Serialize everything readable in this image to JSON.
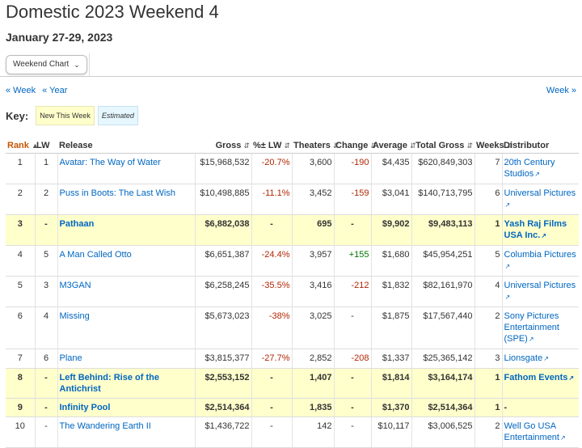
{
  "header": {
    "title": "Domestic 2023 Weekend 4",
    "dates": "January 27-29, 2023"
  },
  "toolbar": {
    "dropdown_label": "Weekend Chart"
  },
  "nav": {
    "prev_week": "« Week",
    "prev_year": "« Year",
    "next_week": "Week »"
  },
  "key": {
    "label": "Key:",
    "new": "New This Week",
    "estimated": "Estimated"
  },
  "columns": {
    "rank": "Rank",
    "lw": "LW",
    "release": "Release",
    "gross": "Gross",
    "pct_lw": "%± LW",
    "theaters": "Theaters",
    "change": "Change",
    "average": "Average",
    "total_gross": "Total Gross",
    "weeks": "Weeks",
    "distributor": "Distributor"
  },
  "colors": {
    "accent": "#c45500",
    "link": "#0066c0",
    "negative": "#b12704",
    "positive": "#007600",
    "new_row": "#ffffcc",
    "estimated": "#e6f7ff"
  },
  "rows": [
    {
      "rank": "1",
      "lw": "1",
      "release": "Avatar: The Way of Water",
      "gross": "$15,968,532",
      "pct_lw": "-20.7%",
      "theaters": "3,600",
      "change": "-190",
      "average": "$4,435",
      "total_gross": "$620,849,303",
      "weeks": "7",
      "distributor": "20th Century Studios",
      "new": false
    },
    {
      "rank": "2",
      "lw": "2",
      "release": "Puss in Boots: The Last Wish",
      "gross": "$10,498,885",
      "pct_lw": "-11.1%",
      "theaters": "3,452",
      "change": "-159",
      "average": "$3,041",
      "total_gross": "$140,713,795",
      "weeks": "6",
      "distributor": "Universal Pictures",
      "new": false
    },
    {
      "rank": "3",
      "lw": "-",
      "release": "Pathaan",
      "gross": "$6,882,038",
      "pct_lw": "-",
      "theaters": "695",
      "change": "-",
      "average": "$9,902",
      "total_gross": "$9,483,113",
      "weeks": "1",
      "distributor": "Yash Raj Films USA Inc.",
      "new": true
    },
    {
      "rank": "4",
      "lw": "5",
      "release": "A Man Called Otto",
      "gross": "$6,651,387",
      "pct_lw": "-24.4%",
      "theaters": "3,957",
      "change": "+155",
      "average": "$1,680",
      "total_gross": "$45,954,251",
      "weeks": "5",
      "distributor": "Columbia Pictures",
      "new": false
    },
    {
      "rank": "5",
      "lw": "3",
      "release": "M3GAN",
      "gross": "$6,258,245",
      "pct_lw": "-35.5%",
      "theaters": "3,416",
      "change": "-212",
      "average": "$1,832",
      "total_gross": "$82,161,970",
      "weeks": "4",
      "distributor": "Universal Pictures",
      "new": false
    },
    {
      "rank": "6",
      "lw": "4",
      "release": "Missing",
      "gross": "$5,673,023",
      "pct_lw": "-38%",
      "theaters": "3,025",
      "change": "-",
      "average": "$1,875",
      "total_gross": "$17,567,440",
      "weeks": "2",
      "distributor": "Sony Pictures Entertainment (SPE)",
      "new": false
    },
    {
      "rank": "7",
      "lw": "6",
      "release": "Plane",
      "gross": "$3,815,377",
      "pct_lw": "-27.7%",
      "theaters": "2,852",
      "change": "-208",
      "average": "$1,337",
      "total_gross": "$25,365,142",
      "weeks": "3",
      "distributor": "Lionsgate",
      "new": false
    },
    {
      "rank": "8",
      "lw": "-",
      "release": "Left Behind: Rise of the Antichrist",
      "gross": "$2,553,152",
      "pct_lw": "-",
      "theaters": "1,407",
      "change": "-",
      "average": "$1,814",
      "total_gross": "$3,164,174",
      "weeks": "1",
      "distributor": "Fathom Events",
      "new": true
    },
    {
      "rank": "9",
      "lw": "-",
      "release": "Infinity Pool",
      "gross": "$2,514,364",
      "pct_lw": "-",
      "theaters": "1,835",
      "change": "-",
      "average": "$1,370",
      "total_gross": "$2,514,364",
      "weeks": "1",
      "distributor": "-",
      "new": true
    },
    {
      "rank": "10",
      "lw": "-",
      "release": "The Wandering Earth II",
      "gross": "$1,436,722",
      "pct_lw": "-",
      "theaters": "142",
      "change": "-",
      "average": "$10,117",
      "total_gross": "$3,006,525",
      "weeks": "2",
      "distributor": "Well Go USA Entertainment",
      "new": false
    }
  ]
}
